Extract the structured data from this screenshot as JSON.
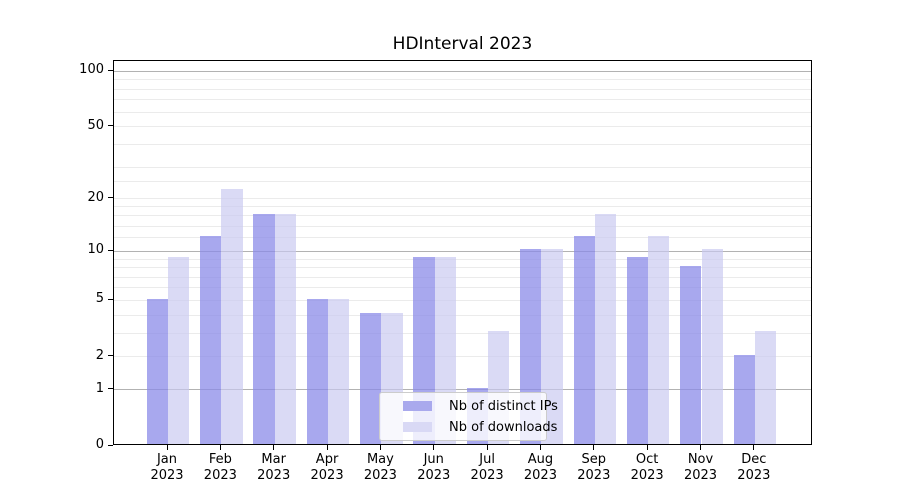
{
  "title": "HDInterval 2023",
  "chart_data": {
    "type": "bar",
    "title": "HDInterval 2023",
    "xlabel": "",
    "ylabel": "",
    "categories": [
      {
        "month": "Jan",
        "year": "2023"
      },
      {
        "month": "Feb",
        "year": "2023"
      },
      {
        "month": "Mar",
        "year": "2023"
      },
      {
        "month": "Apr",
        "year": "2023"
      },
      {
        "month": "May",
        "year": "2023"
      },
      {
        "month": "Jun",
        "year": "2023"
      },
      {
        "month": "Jul",
        "year": "2023"
      },
      {
        "month": "Aug",
        "year": "2023"
      },
      {
        "month": "Sep",
        "year": "2023"
      },
      {
        "month": "Oct",
        "year": "2023"
      },
      {
        "month": "Nov",
        "year": "2023"
      },
      {
        "month": "Dec",
        "year": "2023"
      }
    ],
    "series": [
      {
        "name": "Nb of distinct IPs",
        "values": [
          5,
          12,
          16,
          5,
          4,
          9,
          1,
          10,
          12,
          9,
          8,
          2
        ],
        "color": "rgba(138,138,232,0.74)",
        "swatch_color": "#a9a9ed"
      },
      {
        "name": "Nb of downloads",
        "values": [
          9,
          22,
          16,
          5,
          4,
          9,
          3,
          10,
          16,
          12,
          10,
          3
        ],
        "color": "rgba(200,200,240,0.68)",
        "swatch_color": "#d9d9f5"
      }
    ],
    "yscale": "log10(value+1)",
    "ylim": [
      0,
      116
    ],
    "ytick_values": [
      100,
      50,
      20,
      10,
      5,
      2,
      1,
      0
    ],
    "ytick_labels": [
      "100",
      "50",
      "20",
      "10",
      "5",
      "2",
      "1",
      "0"
    ],
    "minor_grid_values": [
      2,
      3,
      4,
      5,
      6,
      7,
      8,
      9,
      12,
      14,
      16,
      18,
      20,
      25,
      30,
      40,
      50,
      60,
      70,
      80,
      90
    ],
    "major_grid_values": [
      1,
      10,
      100
    ],
    "grid": true,
    "legend_position": "lower center"
  },
  "colors": {
    "bar_distinct_ips": "rgba(138,138,232,0.74)",
    "bar_downloads": "rgba(200,200,240,0.68)",
    "grid_minor": "#ebebeb",
    "grid_major": "#b2b2b2",
    "spine": "#000000",
    "legend_border": "#cccccc",
    "legend_background": "rgba(255,255,255,0.8)"
  }
}
